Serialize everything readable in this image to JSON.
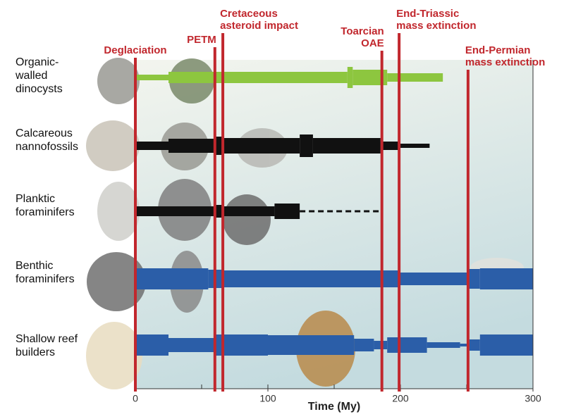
{
  "chart_data": {
    "type": "spindle",
    "x_label": "Time (My)",
    "xlim": [
      0,
      300
    ],
    "xticks": [
      0,
      100,
      200,
      300
    ],
    "minor_xticks": [
      50,
      150,
      250
    ],
    "event_color": "#c1272d",
    "events": [
      {
        "lines": [
          "Deglaciation"
        ],
        "x": 0
      },
      {
        "lines": [
          "PETM"
        ],
        "x": 60
      },
      {
        "lines": [
          "Cretaceous",
          "asteroid impact"
        ],
        "x": 66
      },
      {
        "lines": [
          "Toarcian",
          "OAE"
        ],
        "x": 186
      },
      {
        "lines": [
          "End-Triassic",
          "mass extinction"
        ],
        "x": 199
      },
      {
        "lines": [
          "End-Permian",
          "mass extinction"
        ],
        "x": 251
      }
    ],
    "groups": [
      {
        "lines": [
          "Organic-",
          "walled",
          "dinocysts"
        ],
        "color": "#8dc63f",
        "segments": [
          [
            0,
            25,
            8
          ],
          [
            25,
            160,
            16
          ],
          [
            160,
            164,
            30
          ],
          [
            164,
            190,
            22
          ],
          [
            190,
            232,
            12
          ]
        ]
      },
      {
        "lines": [
          "Calcareous",
          "nannofossils"
        ],
        "color": "#111111",
        "segments": [
          [
            0,
            25,
            12
          ],
          [
            25,
            60,
            20
          ],
          [
            60,
            66,
            26
          ],
          [
            66,
            124,
            22
          ],
          [
            124,
            134,
            32
          ],
          [
            134,
            185,
            22
          ],
          [
            185,
            200,
            12
          ],
          [
            200,
            222,
            6
          ]
        ]
      },
      {
        "lines": [
          "Planktic",
          "foraminifers"
        ],
        "color": "#111111",
        "dashed_from": 124,
        "dashed_to": 185,
        "segments": [
          [
            0,
            60,
            14
          ],
          [
            60,
            66,
            18
          ],
          [
            66,
            105,
            14
          ],
          [
            105,
            124,
            22
          ]
        ]
      },
      {
        "lines": [
          "Benthic",
          "foraminifers"
        ],
        "color": "#2b5ea8",
        "segments": [
          [
            0,
            55,
            30
          ],
          [
            55,
            66,
            26
          ],
          [
            66,
            200,
            24
          ],
          [
            200,
            250,
            18
          ],
          [
            250,
            260,
            28
          ],
          [
            260,
            300,
            30
          ]
        ]
      },
      {
        "lines": [
          "Shallow reef",
          "builders"
        ],
        "color": "#2b5ea8",
        "segments": [
          [
            0,
            25,
            30
          ],
          [
            25,
            60,
            20
          ],
          [
            60,
            100,
            30
          ],
          [
            100,
            165,
            28
          ],
          [
            165,
            180,
            18
          ],
          [
            180,
            190,
            12
          ],
          [
            190,
            220,
            22
          ],
          [
            220,
            245,
            8
          ],
          [
            245,
            252,
            4
          ],
          [
            252,
            260,
            16
          ],
          [
            260,
            300,
            30
          ]
        ]
      }
    ]
  }
}
